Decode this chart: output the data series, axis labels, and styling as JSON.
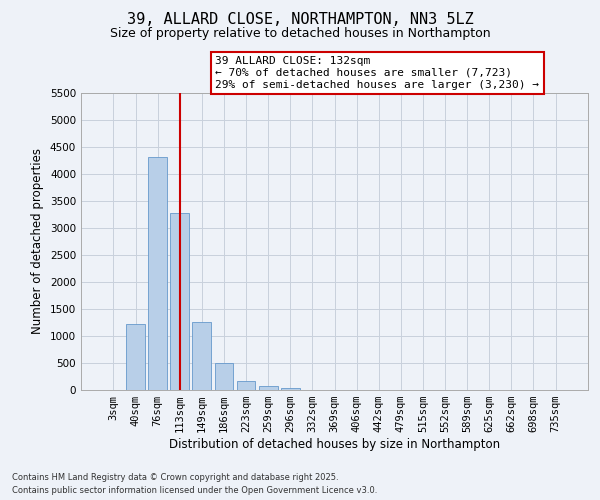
{
  "title1": "39, ALLARD CLOSE, NORTHAMPTON, NN3 5LZ",
  "title2": "Size of property relative to detached houses in Northampton",
  "xlabel": "Distribution of detached houses by size in Northampton",
  "ylabel": "Number of detached properties",
  "categories": [
    "3sqm",
    "40sqm",
    "76sqm",
    "113sqm",
    "149sqm",
    "186sqm",
    "223sqm",
    "259sqm",
    "296sqm",
    "332sqm",
    "369sqm",
    "406sqm",
    "442sqm",
    "479sqm",
    "515sqm",
    "552sqm",
    "589sqm",
    "625sqm",
    "662sqm",
    "698sqm",
    "735sqm"
  ],
  "values": [
    0,
    1220,
    4300,
    3280,
    1250,
    490,
    170,
    80,
    45,
    0,
    0,
    0,
    0,
    0,
    0,
    0,
    0,
    0,
    0,
    0,
    0
  ],
  "bar_color": "#b8cfe8",
  "bar_edge_color": "#6699cc",
  "vline_x": 3.0,
  "vline_color": "#cc0000",
  "annotation_text": "39 ALLARD CLOSE: 132sqm\n← 70% of detached houses are smaller (7,723)\n29% of semi-detached houses are larger (3,230) →",
  "annotation_box_color": "#ffffff",
  "annotation_box_edge": "#cc0000",
  "ylim": [
    0,
    5500
  ],
  "yticks": [
    0,
    500,
    1000,
    1500,
    2000,
    2500,
    3000,
    3500,
    4000,
    4500,
    5000,
    5500
  ],
  "footnote1": "Contains HM Land Registry data © Crown copyright and database right 2025.",
  "footnote2": "Contains public sector information licensed under the Open Government Licence v3.0.",
  "background_color": "#eef2f8",
  "grid_color": "#c8d0dc",
  "title_fontsize": 11,
  "subtitle_fontsize": 9,
  "tick_fontsize": 7.5,
  "axis_label_fontsize": 8.5,
  "annotation_fontsize": 8
}
